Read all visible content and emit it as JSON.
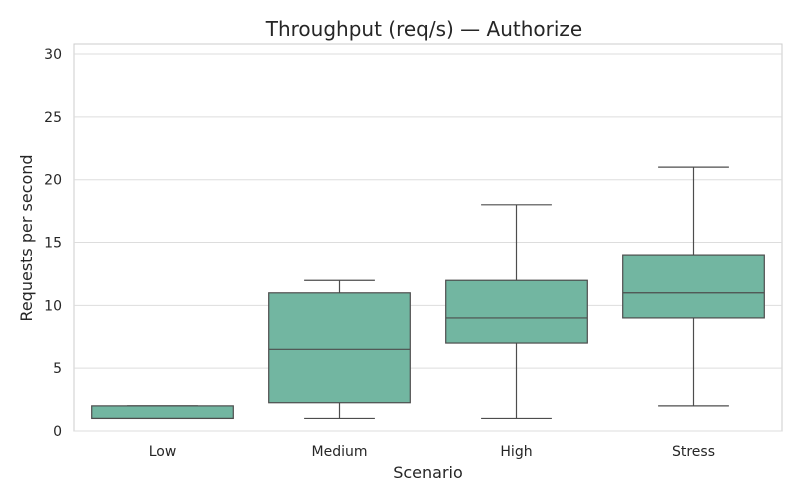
{
  "chart_data": {
    "type": "box",
    "title": "Throughput (req/s) — Authorize",
    "xlabel": "Scenario",
    "ylabel": "Requests per second",
    "ylim": [
      0,
      30.8
    ],
    "yticks": [
      0,
      5,
      10,
      15,
      20,
      25,
      30
    ],
    "grid": "horizontal",
    "box_color": "#72b6a1",
    "line_color": "#4d4d4d",
    "categories": [
      "Low",
      "Medium",
      "High",
      "Stress"
    ],
    "boxes": [
      {
        "category": "Low",
        "whisker_low": 1,
        "q1": 1,
        "median": 1,
        "q3": 2,
        "whisker_high": 2
      },
      {
        "category": "Medium",
        "whisker_low": 1,
        "q1": 2.25,
        "median": 6.5,
        "q3": 11,
        "whisker_high": 12
      },
      {
        "category": "High",
        "whisker_low": 1,
        "q1": 7,
        "median": 9,
        "q3": 12,
        "whisker_high": 18
      },
      {
        "category": "Stress",
        "whisker_low": 2,
        "q1": 9,
        "median": 11,
        "q3": 14,
        "whisker_high": 21
      }
    ]
  }
}
